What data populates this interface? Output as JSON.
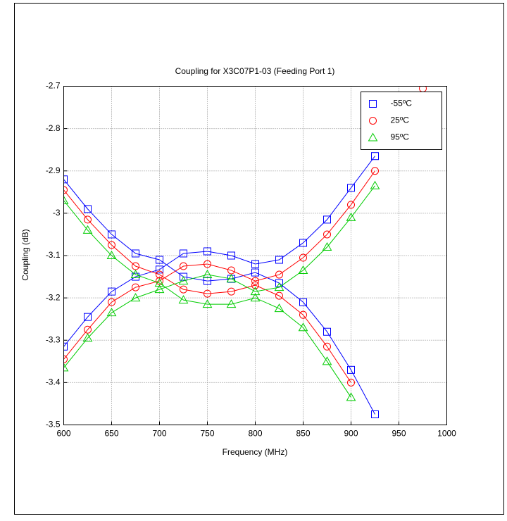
{
  "chart_data": {
    "type": "line",
    "title": "Coupling for X3C07P1-03 (Feeding Port 1)",
    "x_label": "Frequency (MHz)",
    "y_label": "Coupling (dB)",
    "x": [
      600,
      625,
      650,
      675,
      700,
      725,
      750,
      775,
      800,
      825,
      850,
      875,
      900,
      925,
      950,
      975
    ],
    "xlim": [
      600,
      1000
    ],
    "xticks": [
      600,
      650,
      700,
      750,
      800,
      850,
      900,
      950,
      1000
    ],
    "ylim": [
      -3.5,
      -2.7
    ],
    "yticks": [
      -3.5,
      -3.4,
      -3.3,
      -3.2,
      -3.1,
      -3,
      -2.9,
      -2.8,
      -2.7
    ],
    "grid": true,
    "legend": "upper right",
    "series": [
      {
        "name": "-55ºC",
        "color": "#0000ff",
        "marker": "square",
        "lines": [
          [
            -2.92,
            -2.99,
            -3.05,
            -3.095,
            -3.11,
            -3.15,
            -3.16,
            -3.155,
            -3.14,
            -3.165,
            -3.21,
            -3.28,
            -3.37,
            -3.475,
            null,
            null
          ],
          [
            -3.315,
            -3.245,
            -3.185,
            -3.15,
            -3.133,
            -3.095,
            -3.09,
            -3.1,
            -3.12,
            -3.11,
            -3.07,
            -3.015,
            -2.94,
            -2.865,
            null,
            null
          ]
        ]
      },
      {
        "name": "25ºC",
        "color": "#ff0000",
        "marker": "circle",
        "lines": [
          [
            -2.945,
            -3.015,
            -3.075,
            -3.125,
            -3.145,
            -3.18,
            -3.19,
            -3.185,
            -3.17,
            -3.195,
            -3.24,
            -3.315,
            -3.4,
            null,
            null,
            null
          ],
          [
            -3.345,
            -3.275,
            -3.21,
            -3.175,
            -3.16,
            -3.125,
            -3.12,
            -3.135,
            -3.16,
            -3.145,
            -3.105,
            -3.05,
            -2.98,
            -2.9,
            null,
            -2.705
          ]
        ]
      },
      {
        "name": "95ºC",
        "color": "#00cc00",
        "marker": "triangle",
        "lines": [
          [
            -2.97,
            -3.04,
            -3.1,
            -3.145,
            -3.165,
            -3.205,
            -3.215,
            -3.215,
            -3.2,
            -3.225,
            -3.27,
            -3.35,
            -3.435,
            null,
            null,
            null
          ],
          [
            -3.365,
            -3.295,
            -3.235,
            -3.2,
            -3.18,
            -3.16,
            -3.145,
            -3.155,
            -3.185,
            -3.175,
            -3.135,
            -3.08,
            -3.01,
            -2.935,
            null,
            null
          ]
        ]
      }
    ]
  }
}
